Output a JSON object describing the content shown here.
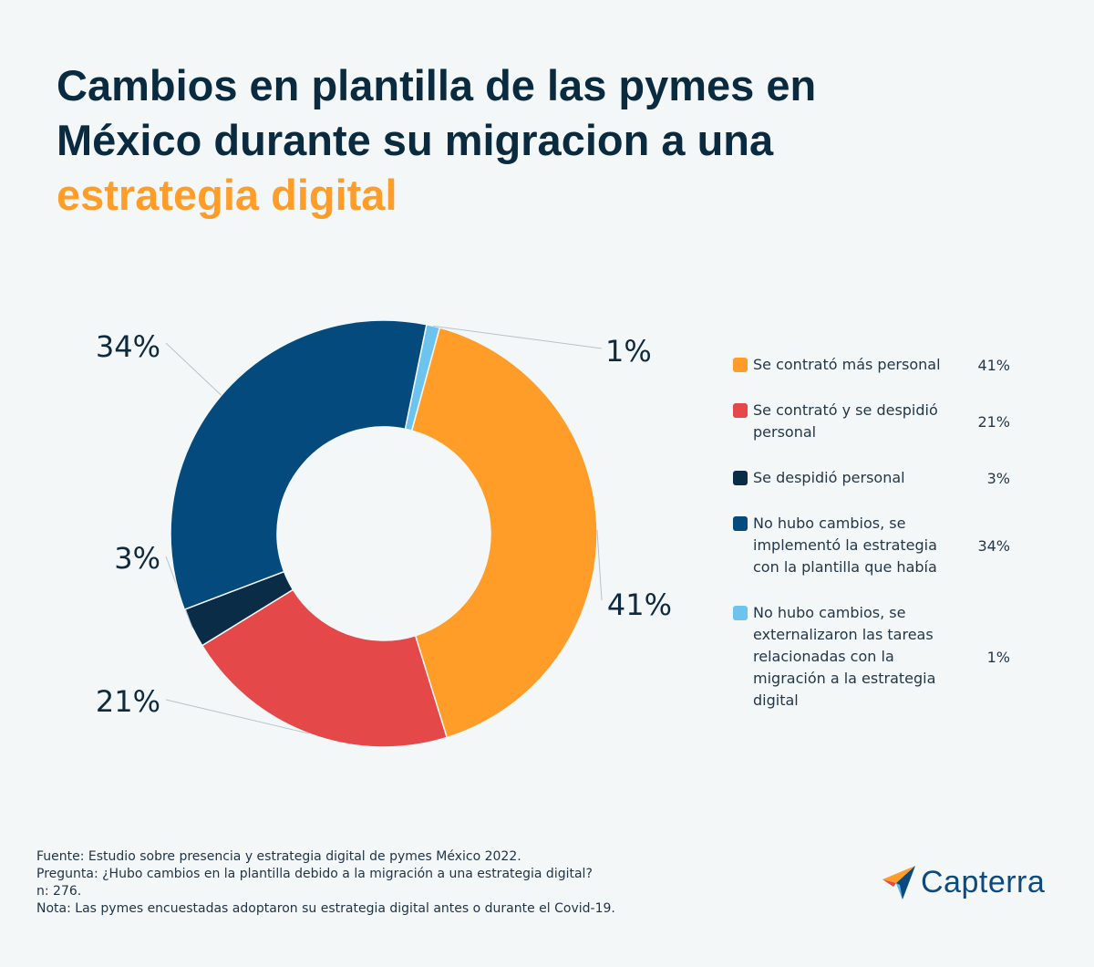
{
  "header": {
    "title_part1": "Cambios en plantilla de las pymes en México durante su migracion a una ",
    "title_accent": "estrategia digital"
  },
  "colors": {
    "background": "#f3f7f8",
    "title": "#0a2a40",
    "accent": "#ff9d28",
    "slices": [
      "#ff9d28",
      "#e44848",
      "#0a2c47",
      "#054a7c",
      "#6cc4ee"
    ]
  },
  "chart_data": {
    "type": "pie",
    "subtype": "donut",
    "categories": [
      "Se contrató más personal",
      "Se contrató y se despidió personal",
      "Se despidió personal",
      "No hubo cambios, se implementó la estrategia con la plantilla que había",
      "No hubo cambios, se externalizaron las tareas relacionadas con la migración a la estrategia digital"
    ],
    "values": [
      41,
      21,
      3,
      34,
      1
    ],
    "data_labels": [
      "41%",
      "21%",
      "3%",
      "34%",
      "1%"
    ],
    "unit": "%",
    "legend_position": "right"
  },
  "legend": {
    "items": [
      {
        "label": "Se contrató más personal",
        "pct": "41%"
      },
      {
        "label": "Se contrató y se despidió personal",
        "pct": "21%"
      },
      {
        "label": "Se despidió personal",
        "pct": "3%"
      },
      {
        "label": "No hubo cambios, se implementó la estrategia con la plantilla que había",
        "pct": "34%"
      },
      {
        "label": "No hubo cambios, se externalizaron las tareas relacionadas con la migración a la estrategia digital",
        "pct": "1%"
      }
    ]
  },
  "footer": {
    "source": "Fuente: Estudio sobre presencia y estrategia digital de pymes México 2022.",
    "question": "Pregunta: ¿Hubo cambios en la plantilla debido a la migración a una estrategia digital?",
    "n": "n: 276.",
    "note": "Nota: Las pymes encuestadas adoptaron su estrategia digital antes o durante el Covid-19."
  },
  "logo": {
    "text": "Capterra",
    "icon": "capterra-arrow-icon"
  }
}
